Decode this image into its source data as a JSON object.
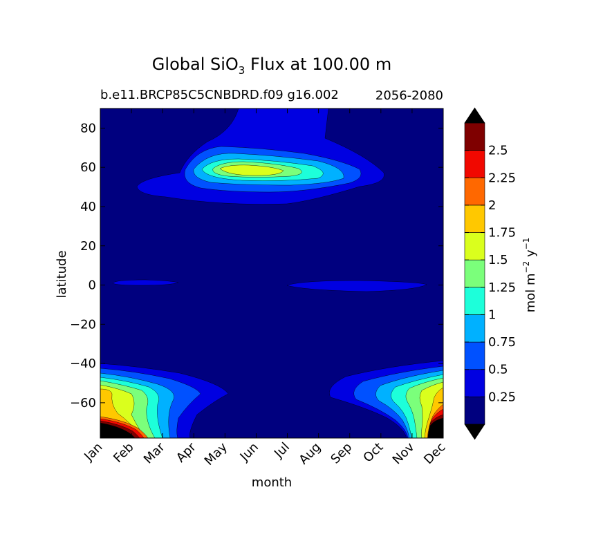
{
  "chart_data": {
    "type": "filled-contour",
    "title_prefix": "Global SiO",
    "title_subscript": "3",
    "title_suffix": " Flux at 100.00 m",
    "case_label": "b.e11.BRCP85C5CNBDRD.f09 g16.002",
    "years_label": "2056-2080",
    "xlabel": "month",
    "ylabel": "latitude",
    "x_ticks": [
      "Jan",
      "Feb",
      "Mar",
      "Apr",
      "May",
      "Jun",
      "Jul",
      "Aug",
      "Sep",
      "Oct",
      "Nov",
      "Dec"
    ],
    "y_ticks": [
      "80",
      "60",
      "40",
      "20",
      "0",
      "−20",
      "−40",
      "−60"
    ],
    "y_tick_values": [
      80,
      60,
      40,
      20,
      0,
      -20,
      -40,
      -60
    ],
    "ylim": [
      -78,
      90
    ],
    "colorbar": {
      "unit_main": "mol m",
      "unit_exp1": "−2",
      "unit_mid": " y",
      "unit_exp2": "−1",
      "extend": "both",
      "levels": [
        0,
        0.25,
        0.5,
        0.75,
        1.0,
        1.25,
        1.5,
        1.75,
        2.0,
        2.25,
        2.5,
        2.75
      ],
      "tick_labels": [
        "0.25",
        "0.5",
        "0.75",
        "1",
        "1.25",
        "1.5",
        "1.75",
        "2",
        "2.25",
        "2.5"
      ],
      "colors": [
        "#00007f",
        "#0000e1",
        "#0051ff",
        "#00b1ff",
        "#1dffda",
        "#7bff7b",
        "#daff1d",
        "#ffc800",
        "#ff6800",
        "#f10800",
        "#7f0000"
      ],
      "under_color": "#000000",
      "over_color": "#000000"
    },
    "features": [
      {
        "region": "northern high latitudes",
        "latitude_range": [
          45,
          68
        ],
        "months": "Apr-Oct",
        "peak_value": 1.75,
        "peak_month": "Jun",
        "peak_latitude": 57
      },
      {
        "region": "southern high latitudes (summer)",
        "latitude_range": [
          -78,
          -40
        ],
        "months": "Oct-Mar",
        "peak_value": "above 2.75",
        "peak_months": "Dec-Feb"
      },
      {
        "region": "equator",
        "latitude_range": [
          -3,
          2
        ],
        "months": "Jan-Mar and Jul-Nov",
        "peak_value": 0.5
      }
    ]
  }
}
